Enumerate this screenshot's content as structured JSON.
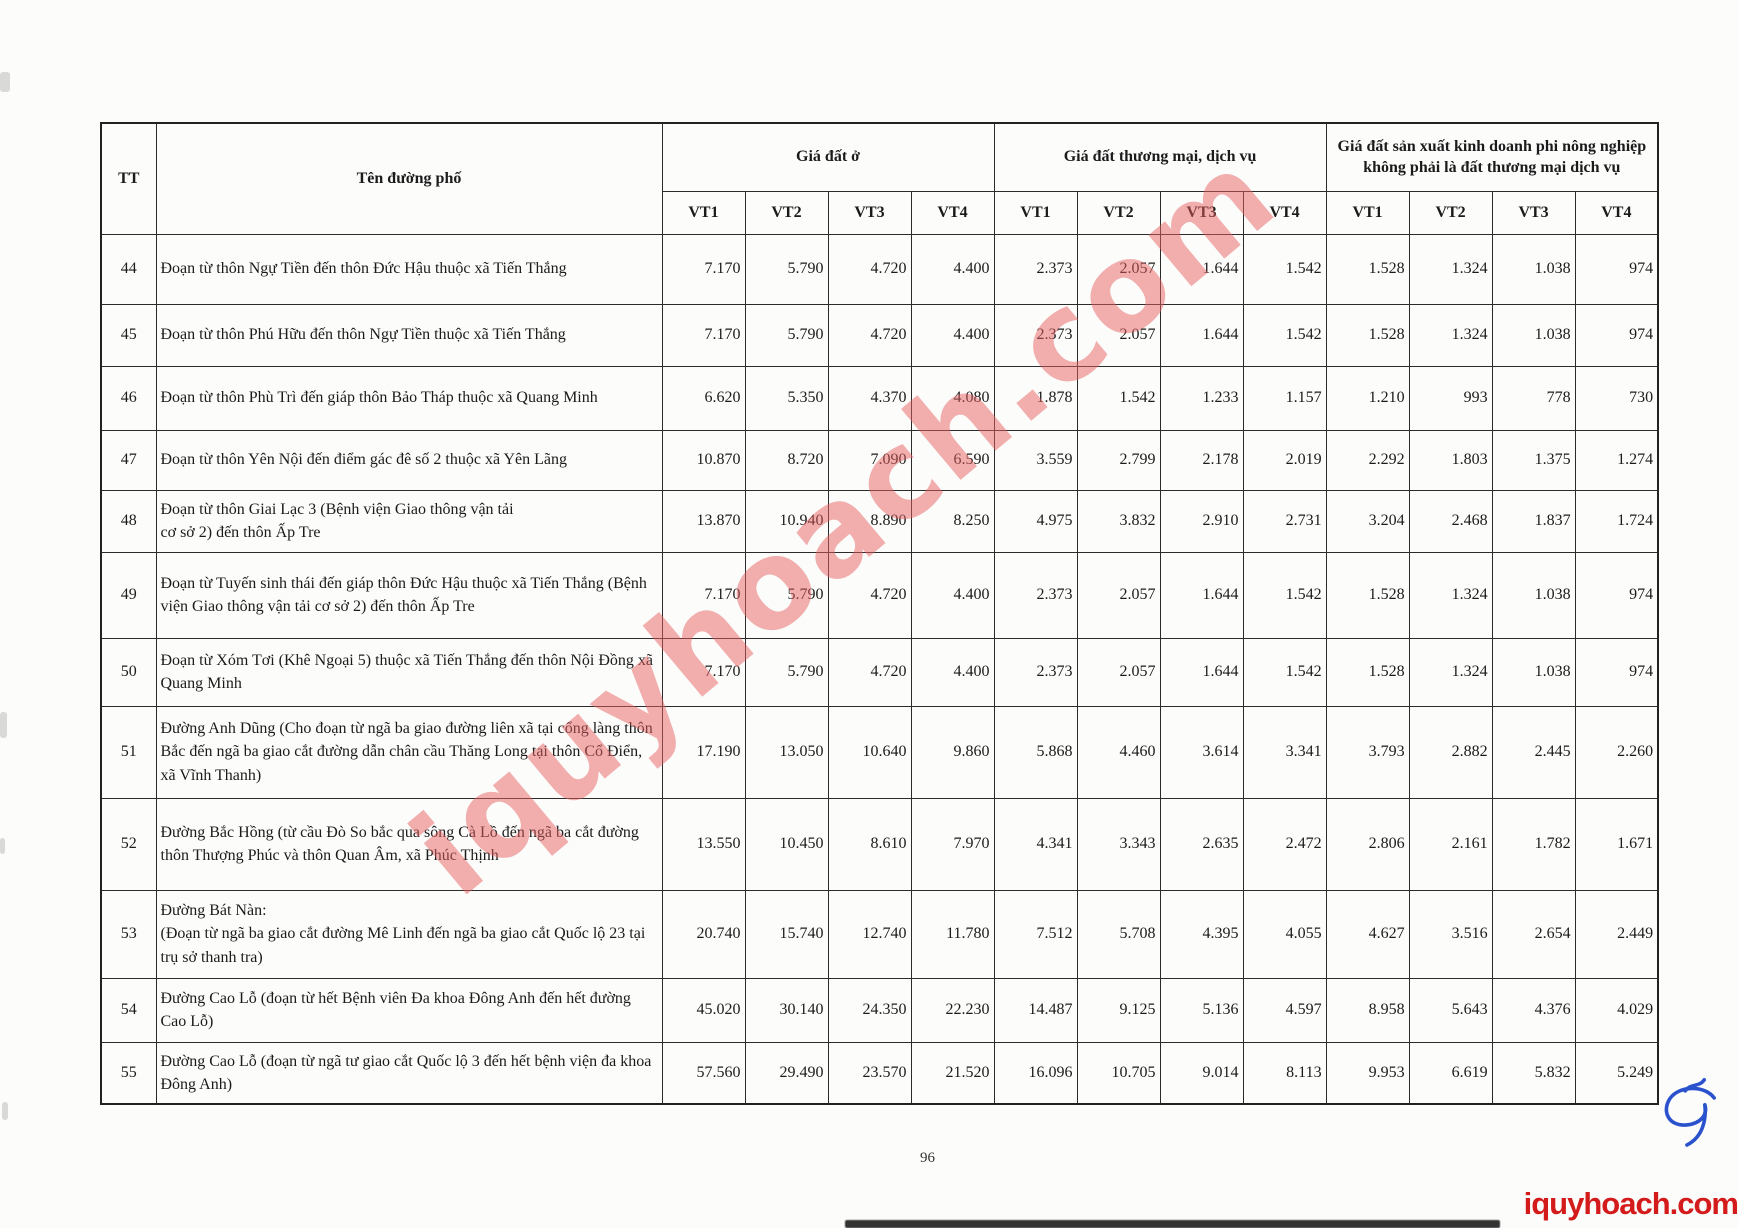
{
  "page": {
    "number": "96",
    "watermark_text": "iquyhoach.com",
    "footer_logo_text": "iquyhoach.com",
    "watermark_color": "#e55f5f",
    "footer_logo_color": "#d41b1b",
    "handwritten_mark": "blue-ink-initials"
  },
  "table": {
    "header": {
      "tt": "TT",
      "street": "Tên đường phố",
      "groups": [
        {
          "label": "Giá đất ở"
        },
        {
          "label": "Giá đất thương mại, dịch vụ"
        },
        {
          "label": "Giá đất sản xuất kinh doanh phi nông nghiệp không phải là đất thương mại dịch vụ"
        }
      ],
      "vt": [
        "VT1",
        "VT2",
        "VT3",
        "VT4"
      ]
    },
    "rows": [
      {
        "tt": "44",
        "name": "Đoạn từ thôn Ngự Tiền đến thôn Đức Hậu thuộc xã Tiến Thắng",
        "values": [
          "7.170",
          "5.790",
          "4.720",
          "4.400",
          "2.373",
          "2.057",
          "1.644",
          "1.542",
          "1.528",
          "1.324",
          "1.038",
          "974"
        ]
      },
      {
        "tt": "45",
        "name": "Đoạn từ thôn Phú Hữu đến thôn Ngự Tiền thuộc xã Tiến Thắng",
        "values": [
          "7.170",
          "5.790",
          "4.720",
          "4.400",
          "2.373",
          "2.057",
          "1.644",
          "1.542",
          "1.528",
          "1.324",
          "1.038",
          "974"
        ]
      },
      {
        "tt": "46",
        "name": "Đoạn từ thôn Phù Trì đến giáp thôn Bảo Tháp thuộc xã Quang Minh",
        "values": [
          "6.620",
          "5.350",
          "4.370",
          "4.080",
          "1.878",
          "1.542",
          "1.233",
          "1.157",
          "1.210",
          "993",
          "778",
          "730"
        ]
      },
      {
        "tt": "47",
        "name": "Đoạn từ thôn Yên Nội đến điểm gác đê số 2 thuộc xã Yên Lãng",
        "values": [
          "10.870",
          "8.720",
          "7.090",
          "6.590",
          "3.559",
          "2.799",
          "2.178",
          "2.019",
          "2.292",
          "1.803",
          "1.375",
          "1.274"
        ]
      },
      {
        "tt": "48",
        "name": "Đoạn từ thôn Giai Lạc 3 (Bệnh viện Giao thông vận tải\ncơ sở 2) đến thôn Ấp Tre",
        "values": [
          "13.870",
          "10.940",
          "8.890",
          "8.250",
          "4.975",
          "3.832",
          "2.910",
          "2.731",
          "3.204",
          "2.468",
          "1.837",
          "1.724"
        ]
      },
      {
        "tt": "49",
        "name": "Đoạn từ Tuyến sinh thái đến giáp thôn Đức Hậu thuộc xã Tiến Thắng (Bệnh viện Giao thông vận tải cơ sở 2) đến thôn Ấp Tre",
        "values": [
          "7.170",
          "5.790",
          "4.720",
          "4.400",
          "2.373",
          "2.057",
          "1.644",
          "1.542",
          "1.528",
          "1.324",
          "1.038",
          "974"
        ]
      },
      {
        "tt": "50",
        "name": "Đoạn từ Xóm Tơi (Khê Ngoại 5) thuộc xã Tiến Thắng đến thôn Nội Đồng xã Quang Minh",
        "values": [
          "7.170",
          "5.790",
          "4.720",
          "4.400",
          "2.373",
          "2.057",
          "1.644",
          "1.542",
          "1.528",
          "1.324",
          "1.038",
          "974"
        ]
      },
      {
        "tt": "51",
        "name": "Đường Anh Dũng (Cho đoạn từ ngã ba giao đường liên xã tại cổng làng thôn Bắc đến ngã ba giao cắt đường dẫn chân cầu Thăng Long tại thôn Cổ Điển, xã Vĩnh Thanh)",
        "values": [
          "17.190",
          "13.050",
          "10.640",
          "9.860",
          "5.868",
          "4.460",
          "3.614",
          "3.341",
          "3.793",
          "2.882",
          "2.445",
          "2.260"
        ]
      },
      {
        "tt": "52",
        "name": "Đường Bắc Hồng (từ cầu Đò So bắc qua sông Cà Lồ đến ngã ba cắt đường thôn Thượng Phúc và thôn Quan Âm, xã Phúc Thịnh",
        "values": [
          "13.550",
          "10.450",
          "8.610",
          "7.970",
          "4.341",
          "3.343",
          "2.635",
          "2.472",
          "2.806",
          "2.161",
          "1.782",
          "1.671"
        ]
      },
      {
        "tt": "53",
        "name": "Đường Bát Nàn:\n(Đoạn từ ngã ba giao cắt đường Mê Linh đến ngã ba giao cắt Quốc lộ 23 tại trụ sở thanh tra)",
        "values": [
          "20.740",
          "15.740",
          "12.740",
          "11.780",
          "7.512",
          "5.708",
          "4.395",
          "4.055",
          "4.627",
          "3.516",
          "2.654",
          "2.449"
        ]
      },
      {
        "tt": "54",
        "name": "Đường Cao Lỗ (đoạn từ hết Bệnh viên Đa khoa Đông Anh đến hết đường Cao Lỗ)",
        "values": [
          "45.020",
          "30.140",
          "24.350",
          "22.230",
          "14.487",
          "9.125",
          "5.136",
          "4.597",
          "8.958",
          "5.643",
          "4.376",
          "4.029"
        ]
      },
      {
        "tt": "55",
        "name": "Đường Cao Lỗ (đoạn từ ngã tư giao cắt Quốc lộ 3 đến hết bệnh viện đa khoa Đông Anh)",
        "values": [
          "57.560",
          "29.490",
          "23.570",
          "21.520",
          "16.096",
          "10.705",
          "9.014",
          "8.113",
          "9.953",
          "6.619",
          "5.832",
          "5.249"
        ]
      }
    ]
  }
}
